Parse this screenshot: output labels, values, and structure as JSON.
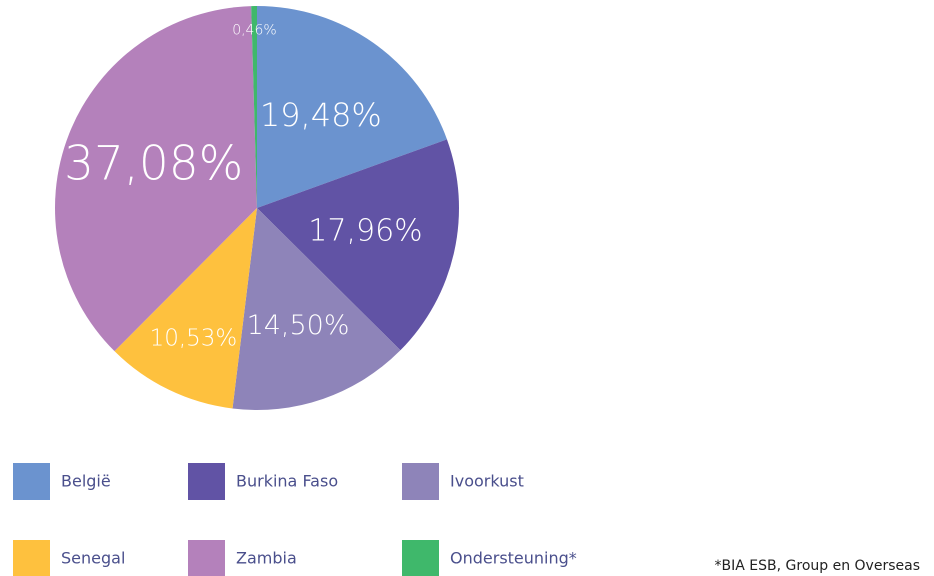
{
  "chart_data": {
    "type": "pie",
    "categories": [
      "België",
      "Burkina Faso",
      "Ivoorkust",
      "Senegal",
      "Zambia",
      "Ondersteuning*"
    ],
    "values": [
      19.48,
      17.96,
      14.5,
      10.53,
      37.08,
      0.46
    ],
    "value_labels": [
      "19,48%",
      "17,96%",
      "14,50%",
      "10,53%",
      "37,08%",
      "0,46%"
    ],
    "colors": [
      "#6b93cf",
      "#6153a5",
      "#8e84b9",
      "#fec13e",
      "#b481bb",
      "#3fb86b"
    ],
    "footnote": "*BIA ESB, Group en Overseas"
  }
}
